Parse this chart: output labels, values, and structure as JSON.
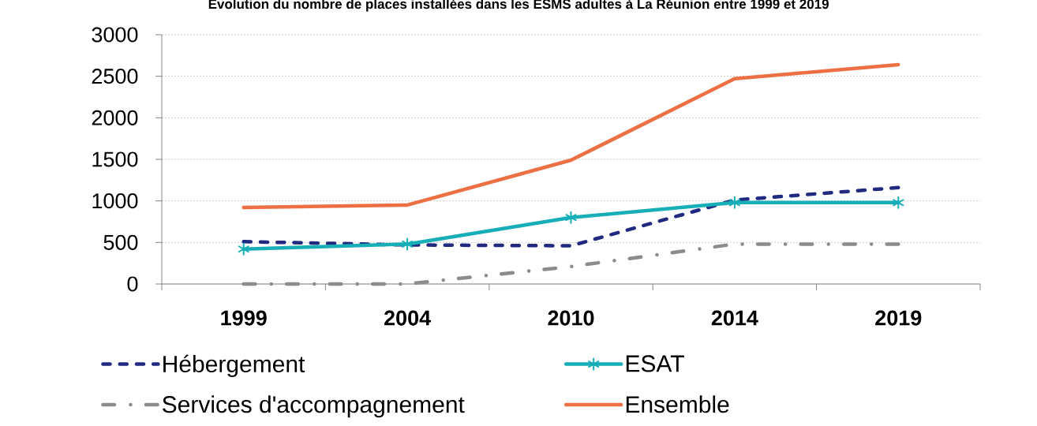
{
  "chart_data": {
    "type": "line",
    "title": "Evolution du nombre de places installées dans les ESMS adultes à La Réunion entre 1999 et 2019",
    "categories": [
      "1999",
      "2004",
      "2010",
      "2014",
      "2019"
    ],
    "series": [
      {
        "name": "Hébergement",
        "color": "#1f2a80",
        "values": [
          510,
          470,
          460,
          1010,
          1160
        ],
        "line_style": "dashed",
        "marker": "none"
      },
      {
        "name": "ESAT",
        "color": "#17aeb8",
        "values": [
          420,
          480,
          800,
          980,
          980
        ],
        "line_style": "solid",
        "marker": "cross"
      },
      {
        "name": "Services d'accompagnement",
        "color": "#8c8c8c",
        "values": [
          0,
          0,
          210,
          480,
          480
        ],
        "line_style": "dashdot",
        "marker": "none"
      },
      {
        "name": "Ensemble",
        "color": "#ed7045",
        "values": [
          920,
          950,
          1490,
          2470,
          2640
        ],
        "line_style": "solid",
        "marker": "none"
      }
    ],
    "ylim": [
      0,
      3000
    ],
    "yticks": [
      0,
      500,
      1000,
      1500,
      2000,
      2500,
      3000
    ],
    "grid": "y",
    "legend": "bottom"
  }
}
